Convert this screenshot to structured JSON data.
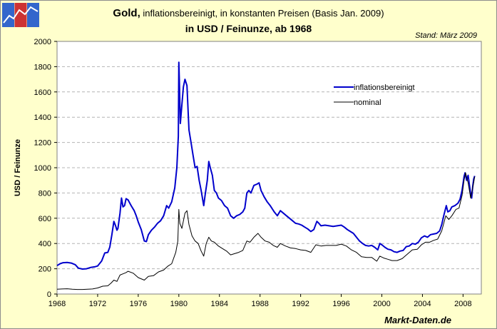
{
  "header": {
    "title_main": "Gold,",
    "title_sub": " inflationsbereinigt, in konstanten Preisen (Basis Jan. 2009)",
    "title_line2": "in USD / Feinunze, ab 1968",
    "stand": "Stand: März 2009"
  },
  "brand": "Markt-Daten.de",
  "colors": {
    "real": "#0000cc",
    "nominal": "#000000",
    "background": "#ffffcc",
    "plot_bg": "#ffffff",
    "grid": "#b4b4b4"
  },
  "chart_data": {
    "type": "line",
    "title": "Gold, inflationsbereinigt, in konstanten Preisen (Basis Jan. 2009) in USD / Feinunze, ab 1968",
    "xlabel": "",
    "ylabel": "USD / Feinunze",
    "xlim": [
      1968,
      2009.8
    ],
    "ylim": [
      0,
      2000
    ],
    "x_ticks": [
      1968,
      1972,
      1976,
      1980,
      1984,
      1988,
      1992,
      1996,
      2000,
      2004,
      2008
    ],
    "y_ticks": [
      0,
      200,
      400,
      600,
      800,
      1000,
      1200,
      1400,
      1600,
      1800,
      2000
    ],
    "grid": "horizontal dashed",
    "legend": {
      "position": "upper-right",
      "entries": [
        "inflationsbereinigt",
        "nominal"
      ]
    },
    "series": [
      {
        "name": "inflationsbereinigt",
        "points": [
          [
            1968.0,
            225
          ],
          [
            1968.3,
            240
          ],
          [
            1968.6,
            248
          ],
          [
            1969.0,
            250
          ],
          [
            1969.4,
            245
          ],
          [
            1969.8,
            232
          ],
          [
            1970.1,
            205
          ],
          [
            1970.5,
            198
          ],
          [
            1970.9,
            200
          ],
          [
            1971.3,
            210
          ],
          [
            1971.7,
            215
          ],
          [
            1972.0,
            222
          ],
          [
            1972.4,
            262
          ],
          [
            1972.7,
            325
          ],
          [
            1973.0,
            330
          ],
          [
            1973.2,
            372
          ],
          [
            1973.4,
            470
          ],
          [
            1973.6,
            575
          ],
          [
            1973.75,
            545
          ],
          [
            1973.9,
            505
          ],
          [
            1974.0,
            520
          ],
          [
            1974.2,
            640
          ],
          [
            1974.35,
            760
          ],
          [
            1974.5,
            690
          ],
          [
            1974.65,
            700
          ],
          [
            1974.8,
            755
          ],
          [
            1975.0,
            745
          ],
          [
            1975.3,
            700
          ],
          [
            1975.6,
            660
          ],
          [
            1975.8,
            620
          ],
          [
            1976.0,
            570
          ],
          [
            1976.3,
            510
          ],
          [
            1976.6,
            420
          ],
          [
            1976.8,
            415
          ],
          [
            1977.0,
            470
          ],
          [
            1977.3,
            505
          ],
          [
            1977.6,
            530
          ],
          [
            1977.9,
            560
          ],
          [
            1978.2,
            580
          ],
          [
            1978.5,
            620
          ],
          [
            1978.8,
            700
          ],
          [
            1979.0,
            680
          ],
          [
            1979.3,
            730
          ],
          [
            1979.6,
            840
          ],
          [
            1979.8,
            1000
          ],
          [
            1979.95,
            1250
          ],
          [
            1980.0,
            1835
          ],
          [
            1980.05,
            1700
          ],
          [
            1980.15,
            1350
          ],
          [
            1980.3,
            1500
          ],
          [
            1980.45,
            1640
          ],
          [
            1980.6,
            1700
          ],
          [
            1980.8,
            1650
          ],
          [
            1981.0,
            1300
          ],
          [
            1981.2,
            1200
          ],
          [
            1981.4,
            1100
          ],
          [
            1981.6,
            1000
          ],
          [
            1981.8,
            1010
          ],
          [
            1982.0,
            900
          ],
          [
            1982.2,
            820
          ],
          [
            1982.45,
            700
          ],
          [
            1982.6,
            790
          ],
          [
            1982.8,
            900
          ],
          [
            1982.95,
            1050
          ],
          [
            1983.1,
            1000
          ],
          [
            1983.3,
            940
          ],
          [
            1983.5,
            820
          ],
          [
            1983.7,
            800
          ],
          [
            1983.9,
            760
          ],
          [
            1984.2,
            740
          ],
          [
            1984.5,
            700
          ],
          [
            1984.8,
            680
          ],
          [
            1985.1,
            620
          ],
          [
            1985.4,
            600
          ],
          [
            1985.7,
            620
          ],
          [
            1986.0,
            630
          ],
          [
            1986.3,
            650
          ],
          [
            1986.5,
            680
          ],
          [
            1986.7,
            800
          ],
          [
            1986.9,
            820
          ],
          [
            1987.1,
            800
          ],
          [
            1987.4,
            860
          ],
          [
            1987.7,
            870
          ],
          [
            1987.9,
            880
          ],
          [
            1988.1,
            820
          ],
          [
            1988.4,
            770
          ],
          [
            1988.7,
            730
          ],
          [
            1989.0,
            700
          ],
          [
            1989.4,
            650
          ],
          [
            1989.7,
            620
          ],
          [
            1990.0,
            660
          ],
          [
            1990.3,
            640
          ],
          [
            1990.6,
            620
          ],
          [
            1990.9,
            600
          ],
          [
            1991.2,
            580
          ],
          [
            1991.5,
            560
          ],
          [
            1991.8,
            555
          ],
          [
            1992.1,
            545
          ],
          [
            1992.4,
            530
          ],
          [
            1992.7,
            515
          ],
          [
            1993.0,
            495
          ],
          [
            1993.3,
            510
          ],
          [
            1993.6,
            575
          ],
          [
            1993.8,
            560
          ],
          [
            1994.0,
            540
          ],
          [
            1994.4,
            545
          ],
          [
            1994.8,
            540
          ],
          [
            1995.2,
            535
          ],
          [
            1995.6,
            540
          ],
          [
            1996.0,
            545
          ],
          [
            1996.3,
            530
          ],
          [
            1996.6,
            510
          ],
          [
            1996.9,
            495
          ],
          [
            1997.2,
            480
          ],
          [
            1997.5,
            450
          ],
          [
            1997.8,
            420
          ],
          [
            1998.1,
            400
          ],
          [
            1998.4,
            385
          ],
          [
            1998.7,
            380
          ],
          [
            1999.0,
            385
          ],
          [
            1999.3,
            370
          ],
          [
            1999.6,
            350
          ],
          [
            1999.8,
            400
          ],
          [
            2000.0,
            390
          ],
          [
            2000.3,
            370
          ],
          [
            2000.6,
            355
          ],
          [
            2000.9,
            350
          ],
          [
            2001.2,
            335
          ],
          [
            2001.5,
            330
          ],
          [
            2001.8,
            340
          ],
          [
            2002.1,
            345
          ],
          [
            2002.4,
            375
          ],
          [
            2002.7,
            380
          ],
          [
            2003.0,
            400
          ],
          [
            2003.3,
            395
          ],
          [
            2003.6,
            410
          ],
          [
            2003.9,
            445
          ],
          [
            2004.2,
            460
          ],
          [
            2004.5,
            450
          ],
          [
            2004.8,
            470
          ],
          [
            2005.1,
            475
          ],
          [
            2005.4,
            480
          ],
          [
            2005.7,
            500
          ],
          [
            2005.9,
            550
          ],
          [
            2006.1,
            620
          ],
          [
            2006.35,
            700
          ],
          [
            2006.5,
            650
          ],
          [
            2006.7,
            660
          ],
          [
            2006.9,
            690
          ],
          [
            2007.2,
            700
          ],
          [
            2007.5,
            720
          ],
          [
            2007.7,
            750
          ],
          [
            2007.9,
            820
          ],
          [
            2008.1,
            930
          ],
          [
            2008.2,
            960
          ],
          [
            2008.35,
            900
          ],
          [
            2008.5,
            940
          ],
          [
            2008.6,
            880
          ],
          [
            2008.75,
            790
          ],
          [
            2008.85,
            760
          ],
          [
            2008.95,
            850
          ],
          [
            2009.05,
            910
          ],
          [
            2009.15,
            935
          ]
        ]
      },
      {
        "name": "nominal",
        "points": [
          [
            1968.0,
            38
          ],
          [
            1968.5,
            40
          ],
          [
            1969.0,
            42
          ],
          [
            1969.5,
            38
          ],
          [
            1970.0,
            36
          ],
          [
            1970.5,
            36
          ],
          [
            1971.0,
            38
          ],
          [
            1971.5,
            40
          ],
          [
            1972.0,
            48
          ],
          [
            1972.5,
            62
          ],
          [
            1973.0,
            65
          ],
          [
            1973.3,
            85
          ],
          [
            1973.6,
            110
          ],
          [
            1973.9,
            100
          ],
          [
            1974.2,
            150
          ],
          [
            1974.5,
            160
          ],
          [
            1974.8,
            170
          ],
          [
            1975.0,
            180
          ],
          [
            1975.5,
            165
          ],
          [
            1976.0,
            130
          ],
          [
            1976.6,
            110
          ],
          [
            1977.0,
            140
          ],
          [
            1977.5,
            145
          ],
          [
            1978.0,
            175
          ],
          [
            1978.5,
            190
          ],
          [
            1978.9,
            220
          ],
          [
            1979.3,
            240
          ],
          [
            1979.7,
            330
          ],
          [
            1979.9,
            420
          ],
          [
            1980.0,
            670
          ],
          [
            1980.1,
            560
          ],
          [
            1980.3,
            520
          ],
          [
            1980.6,
            640
          ],
          [
            1980.8,
            660
          ],
          [
            1981.0,
            550
          ],
          [
            1981.3,
            460
          ],
          [
            1981.6,
            420
          ],
          [
            1981.9,
            400
          ],
          [
            1982.2,
            340
          ],
          [
            1982.45,
            300
          ],
          [
            1982.7,
            400
          ],
          [
            1982.95,
            450
          ],
          [
            1983.2,
            420
          ],
          [
            1983.5,
            410
          ],
          [
            1983.9,
            380
          ],
          [
            1984.3,
            360
          ],
          [
            1984.7,
            340
          ],
          [
            1985.1,
            310
          ],
          [
            1985.5,
            320
          ],
          [
            1985.9,
            330
          ],
          [
            1986.3,
            345
          ],
          [
            1986.7,
            420
          ],
          [
            1987.0,
            410
          ],
          [
            1987.4,
            450
          ],
          [
            1987.8,
            480
          ],
          [
            1988.1,
            450
          ],
          [
            1988.5,
            420
          ],
          [
            1988.9,
            410
          ],
          [
            1989.3,
            385
          ],
          [
            1989.7,
            370
          ],
          [
            1990.0,
            400
          ],
          [
            1990.5,
            380
          ],
          [
            1991.0,
            365
          ],
          [
            1991.5,
            360
          ],
          [
            1992.0,
            350
          ],
          [
            1992.5,
            345
          ],
          [
            1993.0,
            330
          ],
          [
            1993.5,
            390
          ],
          [
            1994.0,
            380
          ],
          [
            1994.5,
            385
          ],
          [
            1995.0,
            385
          ],
          [
            1995.5,
            385
          ],
          [
            1996.0,
            395
          ],
          [
            1996.5,
            380
          ],
          [
            1997.0,
            350
          ],
          [
            1997.5,
            330
          ],
          [
            1998.0,
            295
          ],
          [
            1998.5,
            290
          ],
          [
            1999.0,
            290
          ],
          [
            1999.5,
            260
          ],
          [
            1999.8,
            300
          ],
          [
            2000.2,
            285
          ],
          [
            2000.6,
            275
          ],
          [
            2001.0,
            265
          ],
          [
            2001.5,
            265
          ],
          [
            2002.0,
            280
          ],
          [
            2002.5,
            315
          ],
          [
            2003.0,
            350
          ],
          [
            2003.5,
            355
          ],
          [
            2003.9,
            390
          ],
          [
            2004.3,
            410
          ],
          [
            2004.7,
            410
          ],
          [
            2005.1,
            425
          ],
          [
            2005.5,
            435
          ],
          [
            2005.9,
            500
          ],
          [
            2006.3,
            620
          ],
          [
            2006.6,
            590
          ],
          [
            2006.9,
            620
          ],
          [
            2007.3,
            670
          ],
          [
            2007.6,
            680
          ],
          [
            2007.9,
            780
          ],
          [
            2008.1,
            900
          ],
          [
            2008.25,
            960
          ],
          [
            2008.5,
            880
          ],
          [
            2008.75,
            760
          ],
          [
            2008.9,
            820
          ],
          [
            2009.05,
            880
          ],
          [
            2009.15,
            930
          ]
        ]
      }
    ]
  }
}
